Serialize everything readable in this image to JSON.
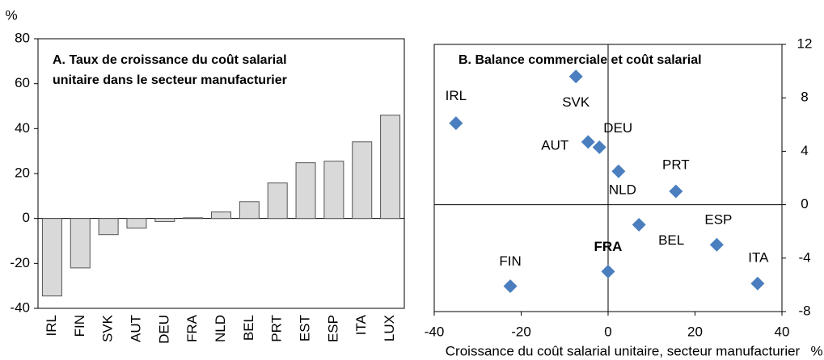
{
  "chart_data": [
    {
      "type": "bar",
      "title": [
        "A. Taux de croissance du coût salarial",
        "unitaire dans le secteur manufacturier"
      ],
      "ylabel": "%",
      "categories": [
        "IRL",
        "FIN",
        "SVK",
        "AUT",
        "DEU",
        "FRA",
        "NLD",
        "BEL",
        "PRT",
        "EST",
        "ESP",
        "ITA",
        "LUX"
      ],
      "values": [
        -34.5,
        -22,
        -7.2,
        -4.3,
        -1.4,
        0.3,
        2.9,
        7.5,
        15.8,
        24.8,
        25.5,
        34.1,
        46
      ],
      "color": "#d9d9d9",
      "ylim": [
        -40,
        80
      ],
      "yticks": [
        -40,
        -20,
        0,
        20,
        40,
        60,
        80
      ]
    },
    {
      "type": "scatter",
      "title": "B. Balance commerciale et coût salarial",
      "xlabel": "Croissance du coût salarial unitaire, secteur manufacturier",
      "x_unit": "%",
      "labels": [
        "IRL",
        "SVK",
        "AUT",
        "DEU",
        "NLD",
        "PRT",
        "BEL",
        "ESP",
        "ITA",
        "FIN",
        "FRA"
      ],
      "x": [
        -35,
        -7.4,
        -4.6,
        -2,
        2.4,
        15.6,
        7.1,
        25,
        34.4,
        -22.5,
        0
      ],
      "values": [
        6.1,
        9.6,
        4.7,
        4.3,
        2.5,
        1.0,
        -1.5,
        -3.0,
        -5.9,
        -6.1,
        -5.0
      ],
      "color": "#4a7ebf",
      "xlim": [
        -40,
        40
      ],
      "xticks": [
        -40,
        -20,
        0,
        20,
        40
      ],
      "ylim": [
        -8,
        12
      ],
      "yticks": [
        -8,
        -4,
        0,
        4,
        8,
        12
      ],
      "y_axis_side": "right"
    }
  ]
}
